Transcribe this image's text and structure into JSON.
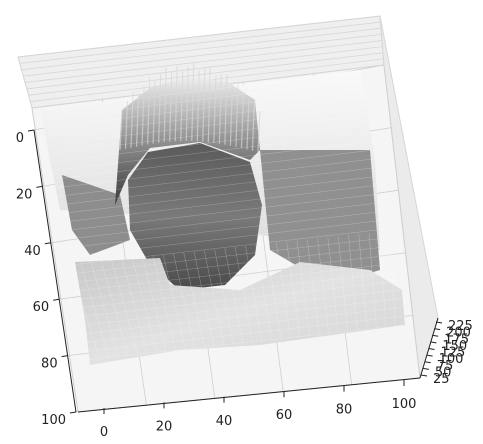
{
  "chart_data": {
    "type": "surface3d",
    "title": "",
    "x_ticks": [
      0,
      20,
      40,
      60,
      80,
      100
    ],
    "y_ticks": [
      0,
      20,
      40,
      60,
      80,
      100
    ],
    "z_ticks": [
      25,
      50,
      75,
      100,
      125,
      150,
      175,
      200,
      225
    ],
    "xlim": [
      0,
      100
    ],
    "ylim": [
      0,
      100
    ],
    "zlim": [
      0,
      255
    ],
    "colormap": "gray",
    "grid": true,
    "legend": "none",
    "data": {
      "description": "grayscale surface of a face photo: height = pixel intensity",
      "background_level": 190,
      "hair_level": 225,
      "face_level": 80,
      "lower_body_level": 170,
      "floor_texture_level": 155
    }
  },
  "colors": {
    "pane": "#f2f2f2",
    "pane_edge": "#d0d0d0",
    "grid": "#b8b8b8",
    "axis": "#222222"
  }
}
